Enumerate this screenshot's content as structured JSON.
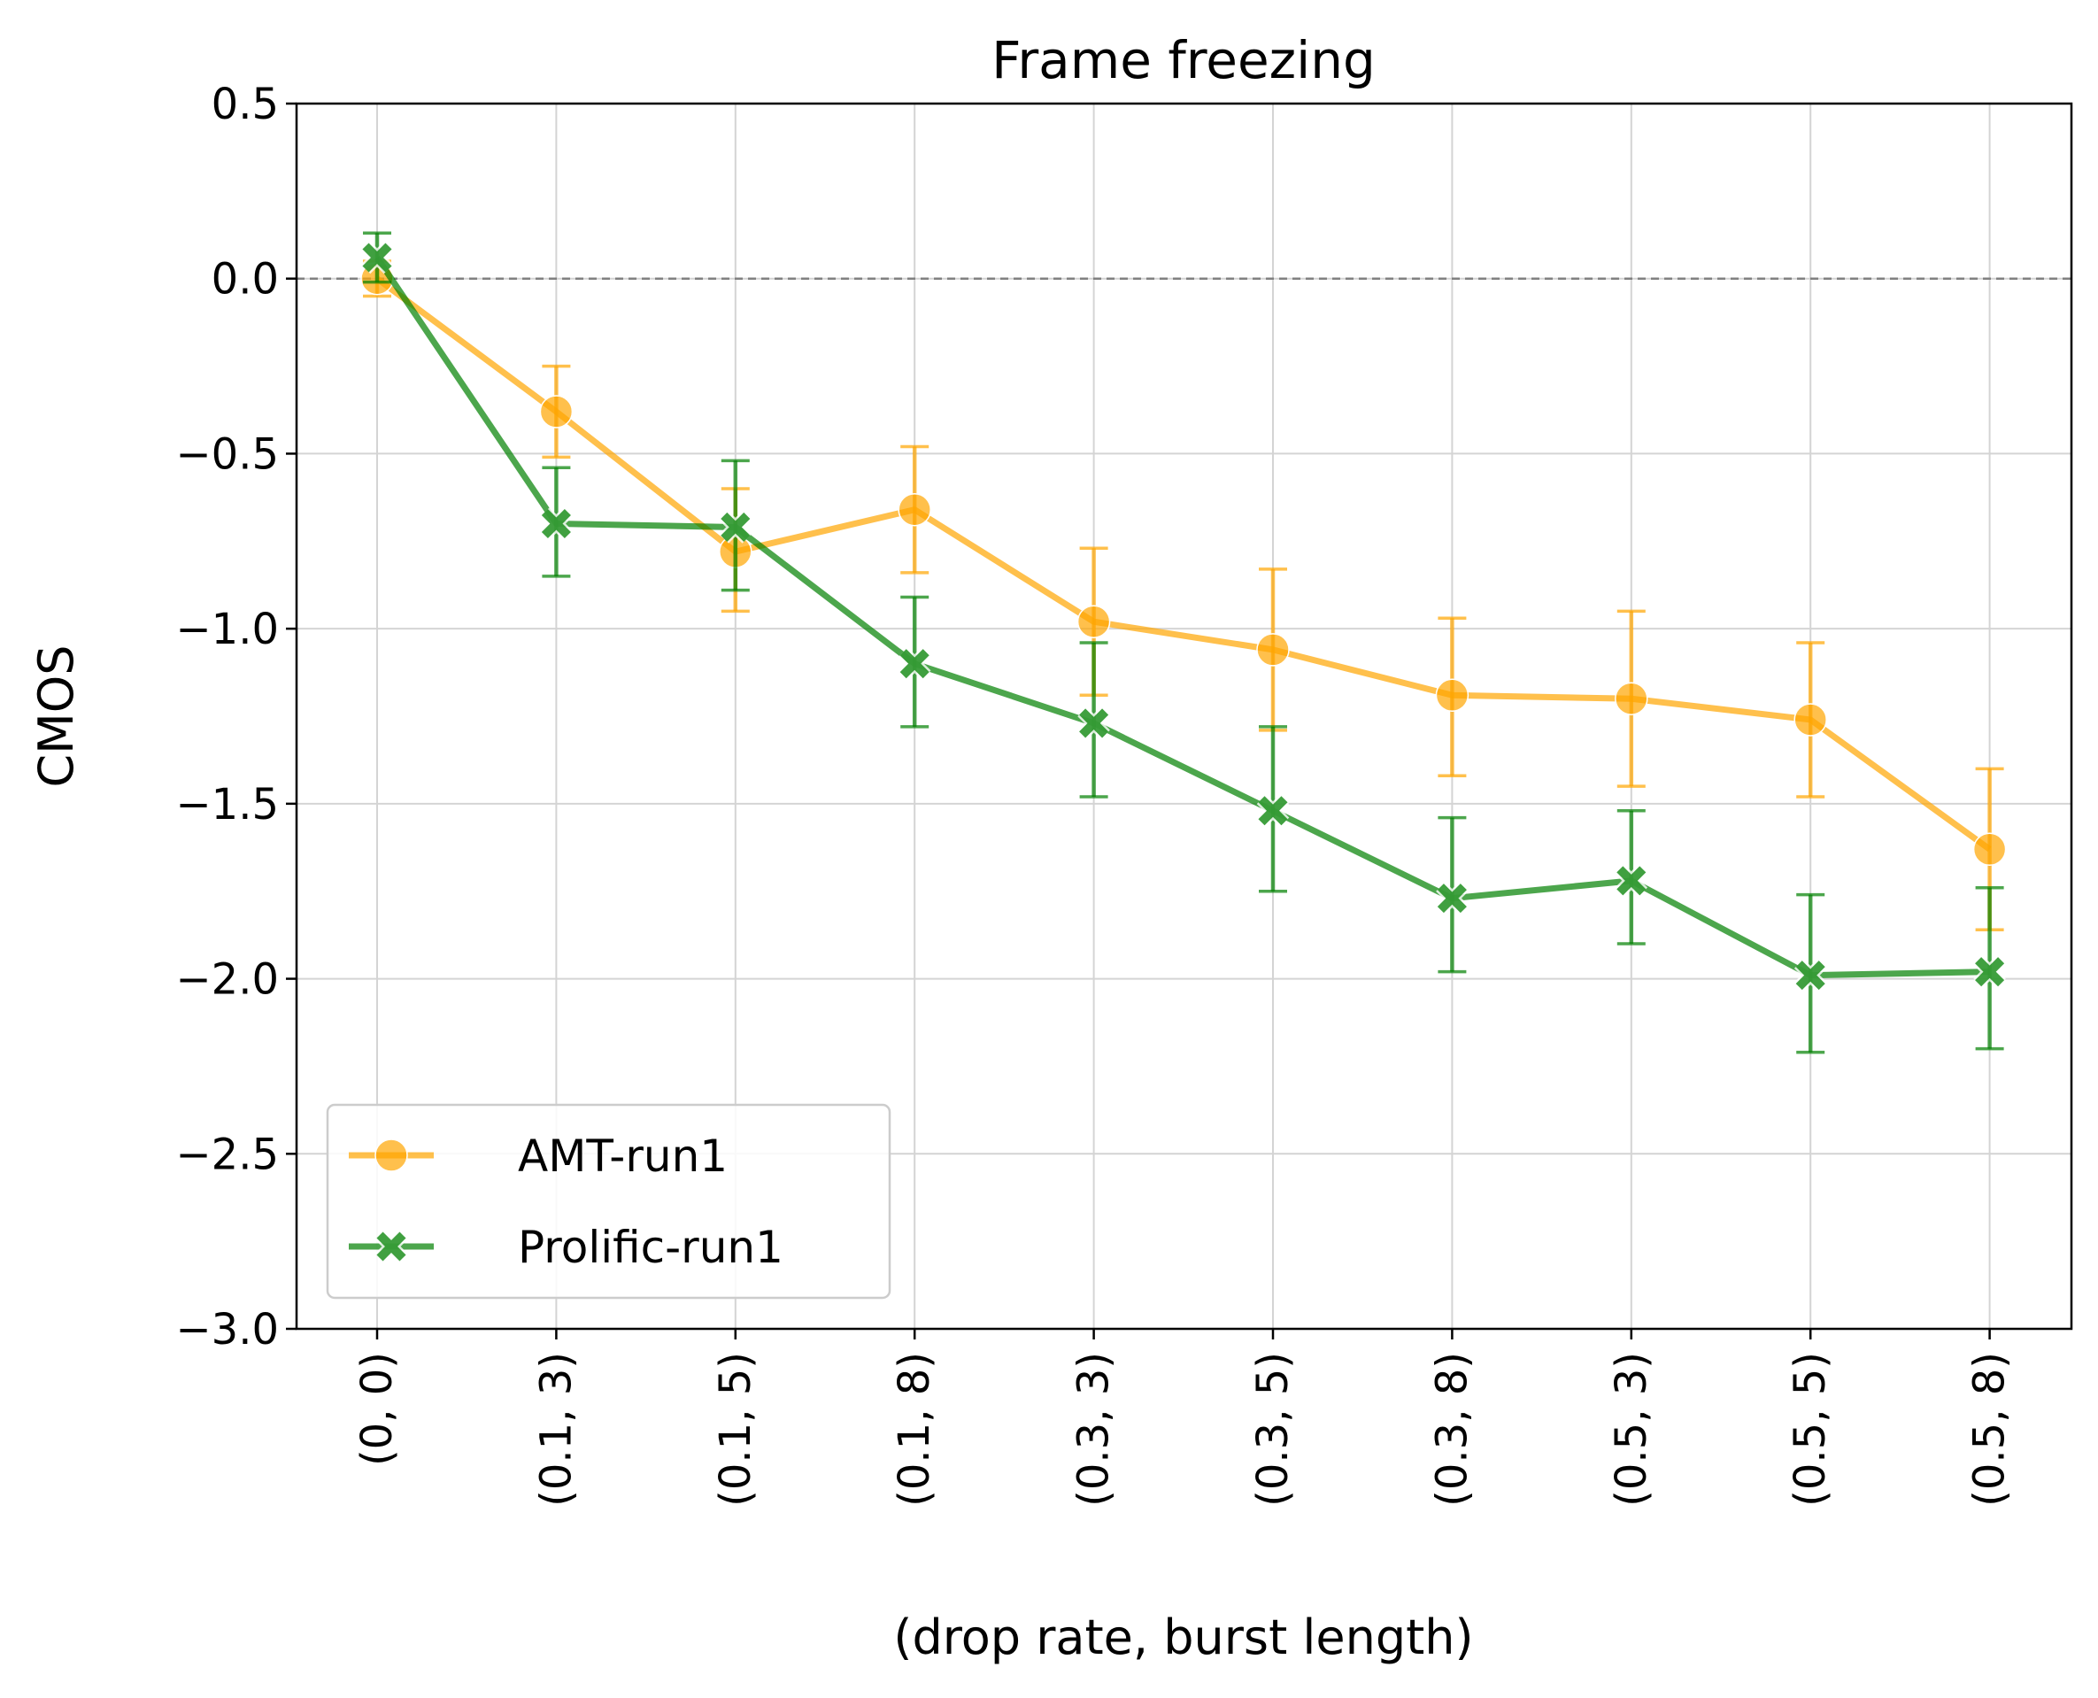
{
  "chart_data": {
    "type": "line",
    "title": "Frame freezing",
    "xlabel": "(drop rate, burst length)",
    "ylabel": "CMOS",
    "ylim": [
      -3.0,
      0.5
    ],
    "yticks": [
      "0.5",
      "0.0",
      "−0.5",
      "−1.0",
      "−1.5",
      "−2.0",
      "−2.5",
      "−3.0"
    ],
    "ytick_values": [
      0.5,
      0.0,
      -0.5,
      -1.0,
      -1.5,
      -2.0,
      -2.5,
      -3.0
    ],
    "categories": [
      "(0, 0)",
      "(0.1, 3)",
      "(0.1, 5)",
      "(0.1, 8)",
      "(0.3, 3)",
      "(0.3, 5)",
      "(0.3, 8)",
      "(0.5, 3)",
      "(0.5, 5)",
      "(0.5, 8)"
    ],
    "grid": true,
    "reference_line": 0.0,
    "legend_position": "lower-left",
    "series": [
      {
        "name": "AMT-run1",
        "color": "#FFA500",
        "marker": "circle",
        "values": [
          0.0,
          -0.38,
          -0.78,
          -0.66,
          -0.98,
          -1.06,
          -1.19,
          -1.2,
          -1.26,
          -1.63
        ],
        "err_low": [
          -0.05,
          -0.51,
          -0.95,
          -0.84,
          -1.19,
          -1.29,
          -1.42,
          -1.45,
          -1.48,
          -1.86
        ],
        "err_high": [
          0.05,
          -0.25,
          -0.6,
          -0.48,
          -0.77,
          -0.83,
          -0.97,
          -0.95,
          -1.04,
          -1.4
        ]
      },
      {
        "name": "Prolific-run1",
        "color": "#008000",
        "marker": "x",
        "values": [
          0.06,
          -0.7,
          -0.71,
          -1.1,
          -1.27,
          -1.52,
          -1.77,
          -1.72,
          -1.99,
          -1.98
        ],
        "err_low": [
          -0.01,
          -0.85,
          -0.89,
          -1.28,
          -1.48,
          -1.75,
          -1.98,
          -1.9,
          -2.21,
          -2.2
        ],
        "err_high": [
          0.13,
          -0.54,
          -0.52,
          -0.91,
          -1.04,
          -1.28,
          -1.54,
          -1.52,
          -1.76,
          -1.74
        ]
      }
    ]
  }
}
